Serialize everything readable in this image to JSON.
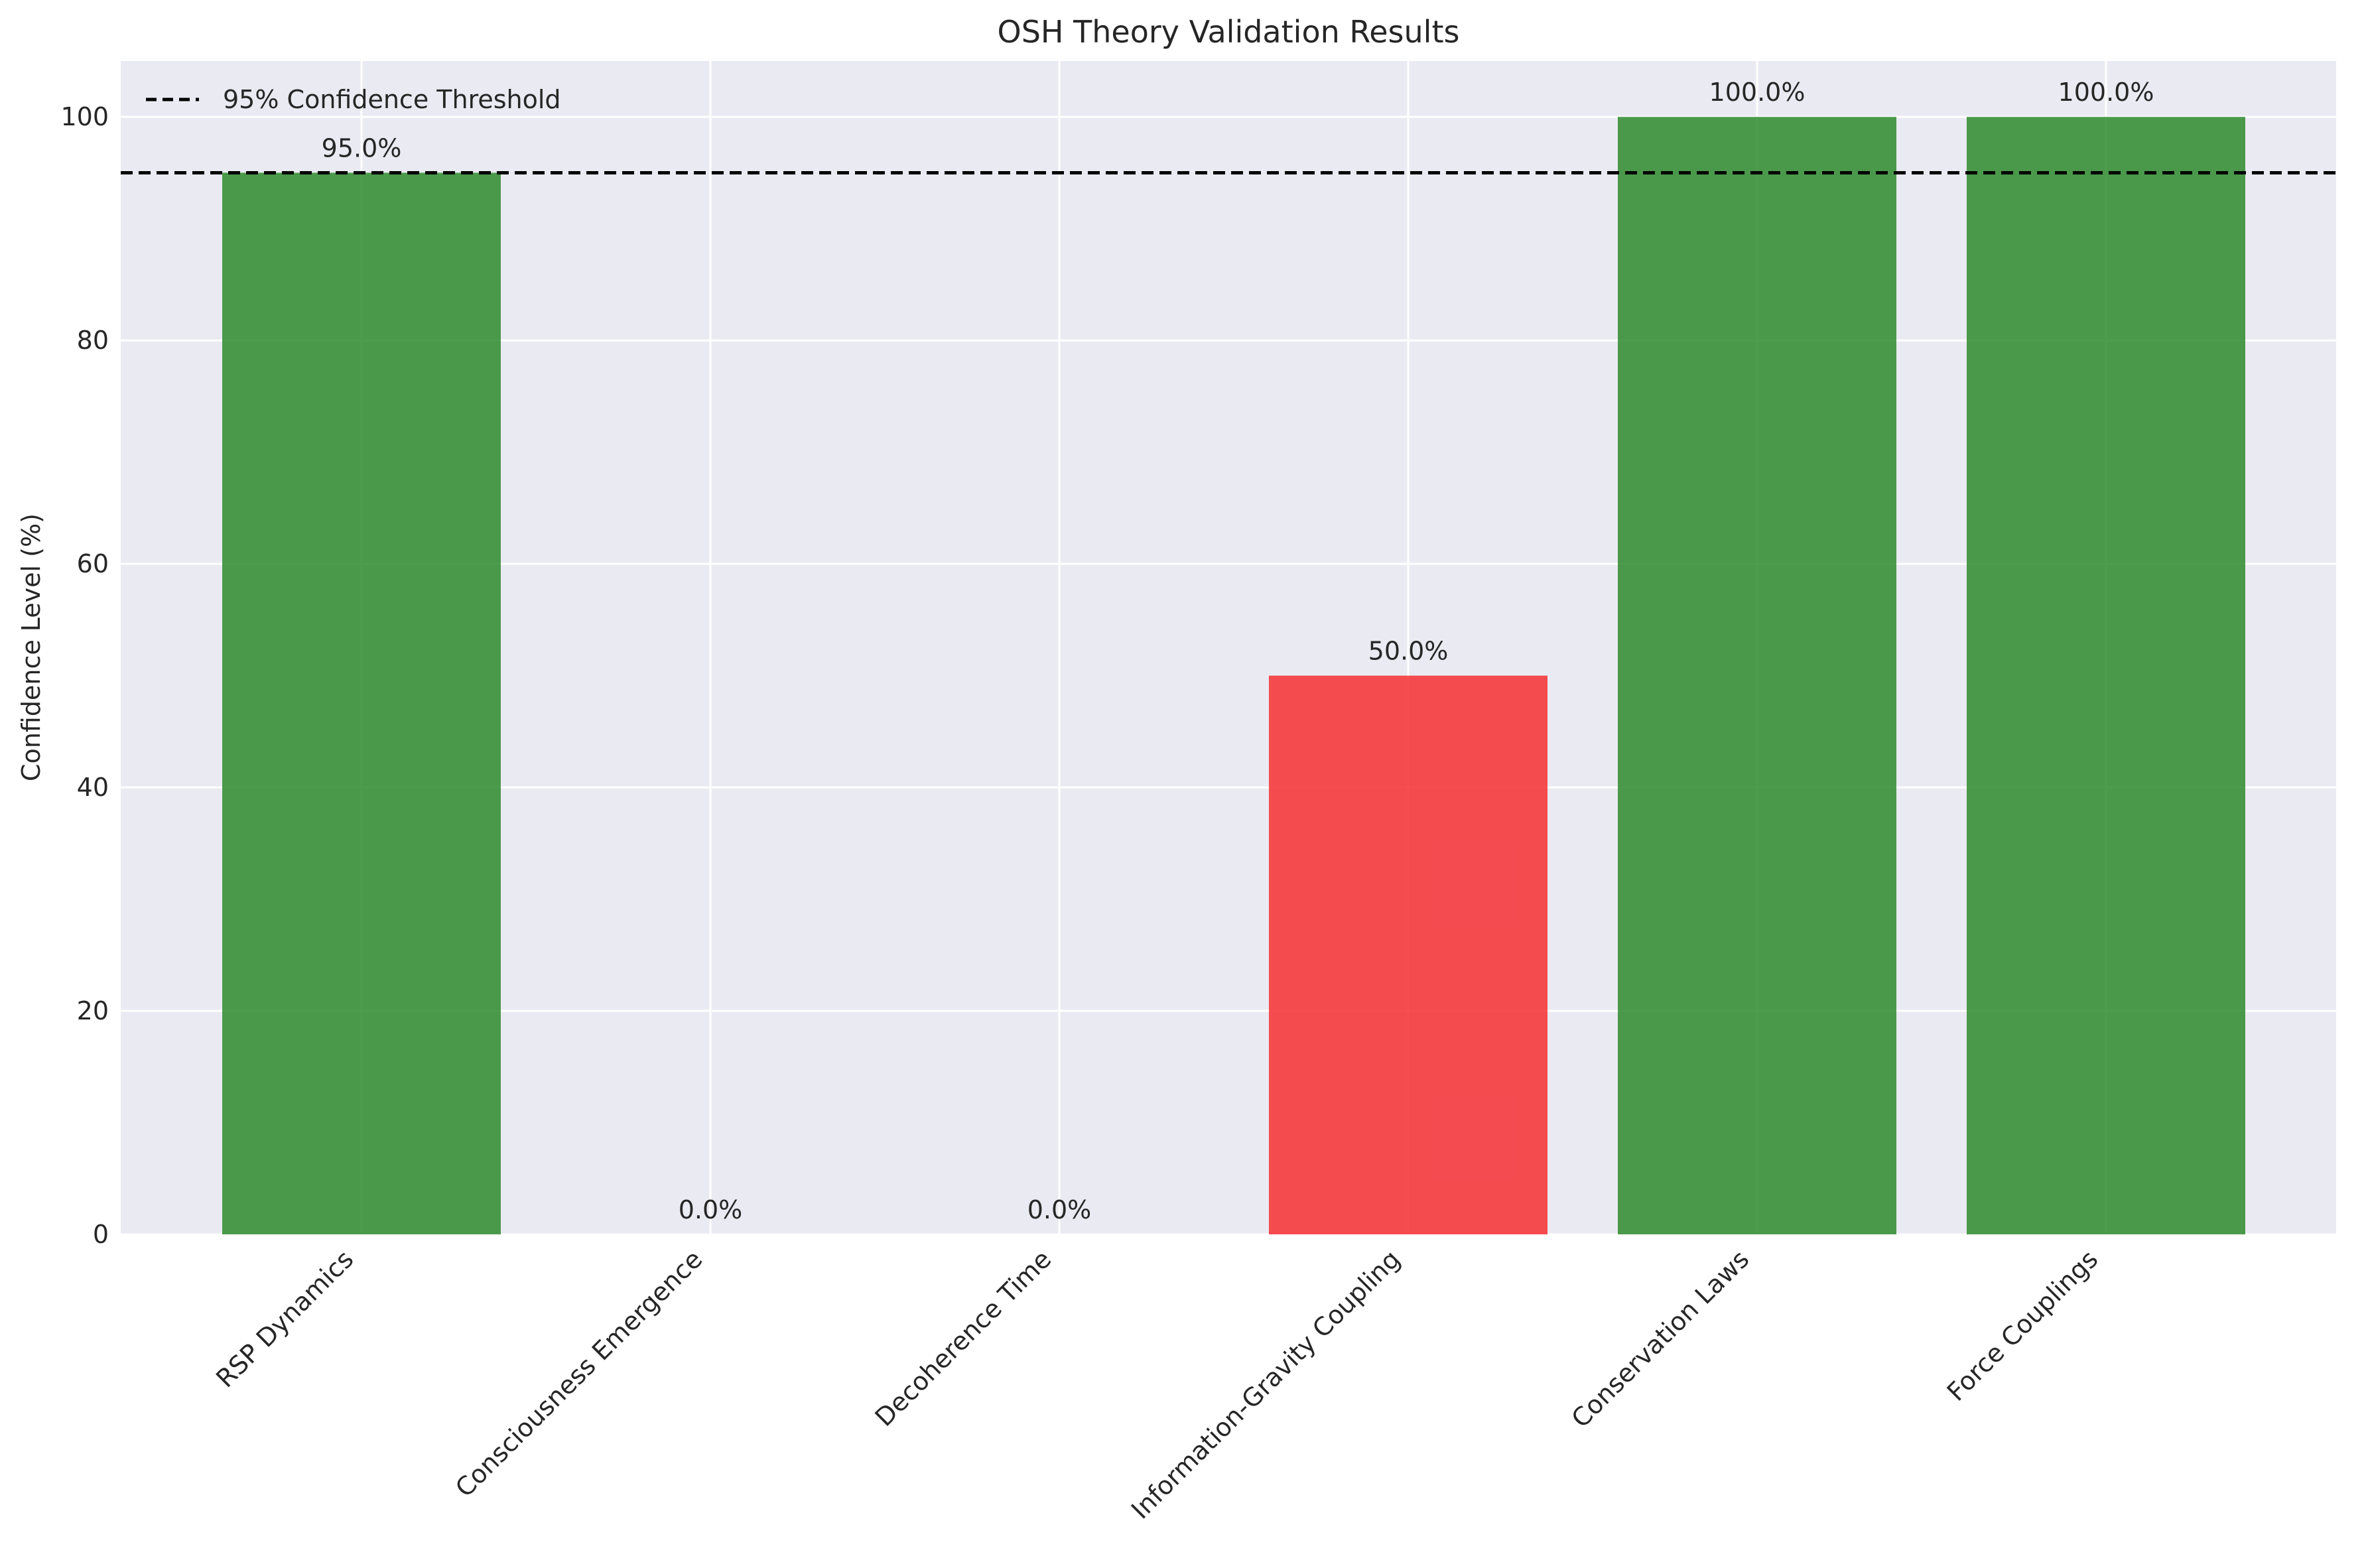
{
  "chart_data": {
    "type": "bar",
    "title": "OSH Theory Validation Results",
    "xlabel": "",
    "ylabel": "Confidence Level (%)",
    "ylim": [
      0,
      105
    ],
    "yticks": [
      0,
      20,
      40,
      60,
      80,
      100
    ],
    "grid": true,
    "legend_position": "top-left",
    "categories": [
      "RSP Dynamics",
      "Consciousness Emergence",
      "Decoherence Time",
      "Information-Gravity Coupling",
      "Conservation Laws",
      "Force Couplings"
    ],
    "values": [
      95.0,
      0.0,
      0.0,
      50.0,
      100.0,
      100.0
    ],
    "data_labels": [
      "95.0%",
      "0.0%",
      "0.0%",
      "50.0%",
      "100.0%",
      "100.0%"
    ],
    "bar_colors": [
      "#2e8b2e",
      "#2e8b2e",
      "#2e8b2e",
      "#f62f33",
      "#2e8b2e",
      "#2e8b2e"
    ],
    "threshold": {
      "value": 95,
      "label": "95% Confidence Threshold",
      "color": "#000000",
      "style": "dashed"
    },
    "colors": {
      "background": "#eaeaf2",
      "grid": "#ffffff",
      "pass": "#2e8b2e",
      "fail": "#f62f33"
    }
  }
}
